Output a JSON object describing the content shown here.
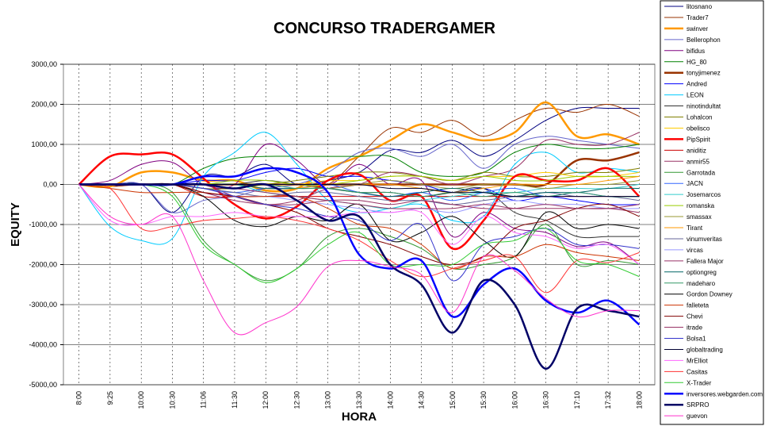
{
  "chart_data": {
    "type": "line",
    "title": "CONCURSO TRADERGAMER",
    "x_label": "HORA",
    "y_label": "EQUITY",
    "categories": [
      "8:00",
      "9:25",
      "10:00",
      "10:30",
      "11:06",
      "11:30",
      "12:00",
      "12:30",
      "13:00",
      "13:30",
      "14:00",
      "14:30",
      "15:00",
      "15:30",
      "16:00",
      "16:30",
      "17:10",
      "17:32",
      "18:00"
    ],
    "ylim": [
      -5000,
      3000
    ],
    "yticks": [
      {
        "value": -5000,
        "label": "-5000,00"
      },
      {
        "value": -4000,
        "label": "-4000,00"
      },
      {
        "value": -3000,
        "label": "-3000,00"
      },
      {
        "value": -2000,
        "label": "-2000,00"
      },
      {
        "value": -1000,
        "label": "-1000,00"
      },
      {
        "value": 0,
        "label": "0,00"
      },
      {
        "value": 1000,
        "label": "1000,00"
      },
      {
        "value": 2000,
        "label": "2000,00"
      },
      {
        "value": 3000,
        "label": "3000,00"
      }
    ],
    "grid": true,
    "legend": "right",
    "series": [
      {
        "name": "litosnano",
        "color": "#000080",
        "values": [
          0,
          -50,
          0,
          -700,
          200,
          200,
          500,
          0,
          100,
          300,
          850,
          800,
          1100,
          700,
          1100,
          1600,
          1900,
          1900,
          1900
        ]
      },
      {
        "name": "Trader7",
        "color": "#993300",
        "values": [
          0,
          -50,
          0,
          0,
          0,
          0,
          0,
          0,
          0,
          700,
          1400,
          1300,
          1600,
          1200,
          1600,
          1900,
          1800,
          2000,
          1700
        ]
      },
      {
        "name": "swinver",
        "color": "#ff9900",
        "values": [
          0,
          -50,
          300,
          300,
          100,
          100,
          -150,
          -100,
          400,
          700,
          1100,
          1500,
          1300,
          1100,
          1300,
          2050,
          1200,
          1250,
          1000
        ]
      },
      {
        "name": "Bellerophon",
        "color": "#6666cc",
        "values": [
          0,
          0,
          0,
          -700,
          -400,
          -300,
          -100,
          0,
          300,
          800,
          900,
          700,
          1000,
          400,
          1000,
          1200,
          1100,
          1000,
          900
        ]
      },
      {
        "name": "bifidus",
        "color": "#800080",
        "values": [
          0,
          100,
          500,
          550,
          0,
          0,
          1000,
          600,
          0,
          500,
          0,
          100,
          -1300,
          -700,
          -1100,
          -1200,
          -1550,
          -1450,
          -2000
        ]
      },
      {
        "name": "HG_80",
        "color": "#008000",
        "values": [
          0,
          0,
          0,
          0,
          400,
          650,
          700,
          700,
          700,
          700,
          700,
          300,
          200,
          300,
          800,
          1000,
          900,
          900,
          1000
        ]
      },
      {
        "name": "tonyjimenez",
        "color": "#993300",
        "values": [
          0,
          0,
          0,
          0,
          0,
          0,
          0,
          0,
          0,
          0,
          0,
          0,
          0,
          0,
          0,
          0,
          600,
          600,
          800
        ]
      },
      {
        "name": "Andred",
        "color": "#0000ff",
        "values": [
          0,
          0,
          0,
          0,
          100,
          100,
          300,
          400,
          200,
          200,
          100,
          0,
          -200,
          -100,
          -400,
          -300,
          -400,
          -500,
          -500
        ]
      },
      {
        "name": "LEON",
        "color": "#00ccff",
        "values": [
          0,
          -1050,
          -1400,
          -1350,
          200,
          800,
          1300,
          500,
          -400,
          -700,
          -600,
          -500,
          -900,
          -800,
          500,
          800,
          300,
          400,
          300
        ]
      },
      {
        "name": "ninotindultat",
        "color": "#333333",
        "values": [
          0,
          0,
          0,
          0,
          0,
          0,
          100,
          0,
          -100,
          -200,
          -200,
          -300,
          -200,
          -100,
          -700,
          -900,
          -1300,
          -1300,
          -1300
        ]
      },
      {
        "name": "Lohalcon",
        "color": "#808000",
        "values": [
          0,
          0,
          0,
          0,
          -100,
          -100,
          0,
          100,
          200,
          300,
          300,
          200,
          100,
          300,
          200,
          200,
          300,
          300,
          400
        ]
      },
      {
        "name": "obelisco",
        "color": "#ffcc00",
        "values": [
          0,
          0,
          0,
          0,
          0,
          0,
          0,
          0,
          100,
          100,
          200,
          200,
          100,
          200,
          200,
          300,
          200,
          200,
          300
        ]
      },
      {
        "name": "PipSpirit",
        "color": "#ff0000",
        "values": [
          0,
          700,
          750,
          750,
          150,
          -500,
          -850,
          -550,
          100,
          250,
          -400,
          -300,
          -1600,
          -900,
          200,
          100,
          100,
          400,
          -300
        ]
      },
      {
        "name": "aniditiz",
        "color": "#cc0000",
        "values": [
          0,
          0,
          0,
          0,
          -300,
          -300,
          -300,
          -300,
          -300,
          -300,
          -300,
          -300,
          -300,
          -300,
          -300,
          -300,
          -300,
          -300,
          -300
        ]
      },
      {
        "name": "anmir55",
        "color": "#993366",
        "values": [
          0,
          0,
          0,
          0,
          0,
          -300,
          -500,
          -400,
          -100,
          0,
          300,
          200,
          0,
          200,
          400,
          1100,
          1000,
          1000,
          1300
        ]
      },
      {
        "name": "Garrotada",
        "color": "#339933",
        "values": [
          0,
          0,
          0,
          -200,
          -1400,
          -2000,
          -2400,
          -2100,
          -1300,
          -1100,
          -1300,
          -1600,
          -2100,
          -2000,
          -1800,
          -1000,
          -2000,
          -1900,
          -2000
        ]
      },
      {
        "name": "JACN",
        "color": "#3366ff",
        "values": [
          0,
          0,
          0,
          0,
          -100,
          -200,
          -100,
          -100,
          0,
          -200,
          -300,
          -200,
          -400,
          -200,
          -100,
          -300,
          -200,
          -300,
          -300
        ]
      },
      {
        "name": "Josemarcos",
        "color": "#33cccc",
        "values": [
          0,
          0,
          0,
          0,
          0,
          0,
          -200,
          -300,
          -400,
          -500,
          -600,
          -400,
          -300,
          -200,
          -200,
          -100,
          -100,
          -100,
          0
        ]
      },
      {
        "name": "romanska",
        "color": "#99cc00",
        "values": [
          0,
          0,
          0,
          0,
          0,
          100,
          100,
          0,
          0,
          100,
          200,
          200,
          100,
          200,
          100,
          100,
          200,
          200,
          200
        ]
      },
      {
        "name": "smassax",
        "color": "#999933",
        "values": [
          0,
          0,
          0,
          0,
          0,
          0,
          0,
          0,
          -100,
          0,
          100,
          0,
          -100,
          0,
          0,
          -100,
          0,
          0,
          100
        ]
      },
      {
        "name": "Tirant",
        "color": "#ff9900",
        "values": [
          0,
          0,
          0,
          0,
          0,
          0,
          -100,
          -100,
          0,
          0,
          0,
          -100,
          -200,
          -100,
          0,
          0,
          0,
          100,
          200
        ]
      },
      {
        "name": "vinumveritas",
        "color": "#666699",
        "values": [
          0,
          0,
          0,
          0,
          -100,
          -200,
          -300,
          -200,
          -200,
          -300,
          -400,
          -400,
          -500,
          -400,
          -300,
          -200,
          -300,
          -300,
          -400
        ]
      },
      {
        "name": "vircas",
        "color": "#9999ff",
        "values": [
          0,
          0,
          0,
          0,
          -200,
          -300,
          -300,
          -400,
          -500,
          -600,
          -700,
          -600,
          -700,
          -500,
          -400,
          -500,
          -500,
          -600,
          -600
        ]
      },
      {
        "name": "Fallera Major",
        "color": "#993366",
        "values": [
          0,
          0,
          0,
          0,
          -200,
          -400,
          -500,
          -500,
          -400,
          -400,
          -500,
          -400,
          -500,
          -600,
          -600,
          -500,
          -600,
          -600,
          -700
        ]
      },
      {
        "name": "optiongreg",
        "color": "#006666",
        "values": [
          0,
          0,
          0,
          0,
          0,
          0,
          -100,
          -100,
          -100,
          -200,
          -300,
          -200,
          -100,
          -200,
          -300,
          -200,
          -200,
          -100,
          -100
        ]
      },
      {
        "name": "madeharo",
        "color": "#339966",
        "values": [
          0,
          0,
          0,
          0,
          0,
          0,
          0,
          -100,
          -100,
          -200,
          -200,
          -300,
          -200,
          -300,
          -200,
          -300,
          -200,
          -300,
          -300
        ]
      },
      {
        "name": "Gordon Downey",
        "color": "#000000",
        "values": [
          0,
          0,
          0,
          0,
          -300,
          -900,
          -1050,
          -800,
          -900,
          -500,
          -1400,
          -1200,
          -800,
          -1400,
          -1800,
          -700,
          -1100,
          -1000,
          -1100
        ]
      },
      {
        "name": "falleteta",
        "color": "#cc3300",
        "values": [
          0,
          -100,
          -200,
          -200,
          -200,
          -300,
          -300,
          -300,
          -600,
          -1000,
          -1100,
          -1500,
          -2100,
          -1800,
          -1800,
          -1500,
          -1700,
          -1800,
          -1900
        ]
      },
      {
        "name": "Chevi",
        "color": "#800000",
        "values": [
          0,
          0,
          0,
          0,
          -200,
          -300,
          -500,
          -700,
          -1100,
          -1300,
          -1500,
          -1800,
          -2000,
          -1800,
          -1100,
          -900,
          -600,
          -500,
          -800
        ]
      },
      {
        "name": "itrade",
        "color": "#993366",
        "values": [
          0,
          0,
          0,
          0,
          0,
          -100,
          -200,
          -300,
          -400,
          -500,
          -600,
          -600,
          -600,
          -500,
          -600,
          -600,
          -600,
          -600,
          -500
        ]
      },
      {
        "name": "Bolsa1",
        "color": "#3333cc",
        "values": [
          0,
          0,
          0,
          0,
          -100,
          -300,
          -500,
          -600,
          -800,
          -900,
          -1400,
          -1000,
          -2400,
          -1500,
          -1300,
          -1100,
          -1500,
          -1500,
          -1600
        ]
      },
      {
        "name": "globaltrading",
        "color": "#000033",
        "values": [
          0,
          0,
          0,
          0,
          0,
          0,
          0,
          0,
          0,
          0,
          -100,
          -100,
          -200,
          -200,
          -300,
          -300,
          -300,
          -300,
          -300
        ]
      },
      {
        "name": "MrElliot",
        "color": "#ff66ff",
        "values": [
          0,
          -900,
          -1000,
          -800,
          -800,
          -700,
          -800,
          -800,
          -800,
          -700,
          -700,
          -700,
          -1500,
          -800,
          -1200,
          -1300,
          -1600,
          -1500,
          -2000
        ]
      },
      {
        "name": "Casitas",
        "color": "#ff3333",
        "values": [
          0,
          -100,
          -1100,
          -1050,
          -900,
          -850,
          -800,
          -900,
          -1100,
          -1400,
          -1900,
          -2300,
          -2100,
          -1900,
          -1800,
          -2700,
          -1900,
          -1950,
          -1700
        ]
      },
      {
        "name": "X-Trader",
        "color": "#33cc33",
        "values": [
          0,
          0,
          0,
          -300,
          -1500,
          -2000,
          -2450,
          -2100,
          -1500,
          -1200,
          -2000,
          -2000,
          -2000,
          -1500,
          -1400,
          -1100,
          -1900,
          -2000,
          -2300
        ]
      },
      {
        "name": "inversores.webgarden.com",
        "color": "#0000ff",
        "values": [
          0,
          0,
          0,
          0,
          200,
          200,
          400,
          300,
          -200,
          -1750,
          -2100,
          -1900,
          -3300,
          -2500,
          -2100,
          -2900,
          -3200,
          -2900,
          -3500
        ]
      },
      {
        "name": "SRPRO",
        "color": "#000066",
        "values": [
          0,
          0,
          0,
          0,
          0,
          -100,
          0,
          -400,
          -900,
          -800,
          -2000,
          -2500,
          -3700,
          -2400,
          -3000,
          -4600,
          -3100,
          -3150,
          -3300
        ]
      },
      {
        "name": "guevon",
        "color": "#ff33cc",
        "values": [
          0,
          -800,
          -1000,
          -800,
          -2400,
          -3700,
          -3450,
          -3050,
          -2050,
          -1900,
          -2050,
          -2250,
          -3200,
          -1800,
          -2150,
          -2850,
          -3300,
          -3150,
          -3150
        ]
      }
    ]
  }
}
